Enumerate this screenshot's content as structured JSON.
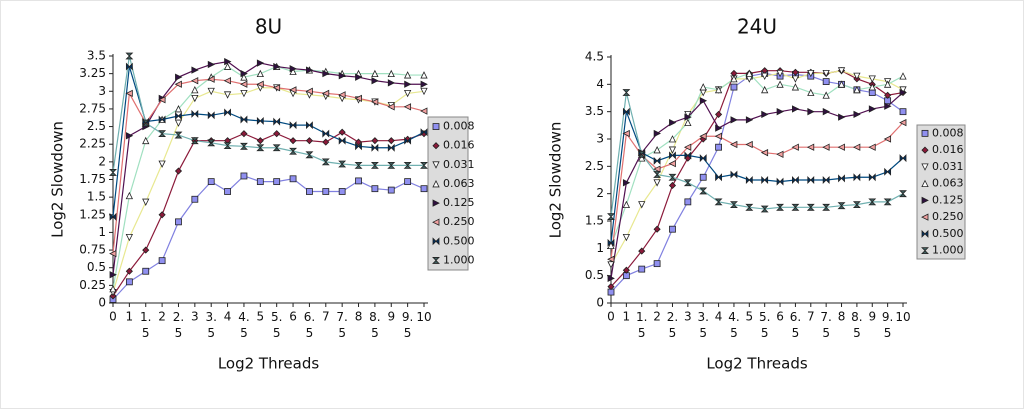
{
  "chart_data": [
    {
      "type": "line",
      "title": "8U",
      "xlabel": "Log2 Threads",
      "ylabel": "Log2 Slowdown",
      "categories": [
        "0",
        "1",
        "1.5",
        "2",
        "2.5",
        "3",
        "3.5",
        "4",
        "4.5",
        "5",
        "5.5",
        "6",
        "6.5",
        "7",
        "7.5",
        "8",
        "8.5",
        "9",
        "9.5",
        "10"
      ],
      "ylim": [
        0,
        3.5
      ],
      "yticks": [
        0,
        0.25,
        0.5,
        0.75,
        1,
        1.25,
        1.5,
        1.75,
        2,
        2.25,
        2.5,
        2.75,
        3,
        3.25,
        3.5
      ],
      "legend": "right",
      "series": [
        {
          "name": "0.008",
          "color": "#8080e0",
          "marker": "square",
          "marker_fill": "#9090f0",
          "values": [
            0.05,
            0.3,
            0.45,
            0.6,
            1.15,
            1.47,
            1.72,
            1.58,
            1.8,
            1.72,
            1.72,
            1.76,
            1.58,
            1.58,
            1.58,
            1.73,
            1.62,
            1.6,
            1.72,
            1.62
          ]
        },
        {
          "name": "0.016",
          "color": "#8b1a3a",
          "marker": "diamond",
          "marker_fill": "#8b1a3a",
          "values": [
            0.1,
            0.45,
            0.75,
            1.25,
            1.87,
            2.3,
            2.3,
            2.3,
            2.4,
            2.3,
            2.4,
            2.3,
            2.3,
            2.28,
            2.42,
            2.28,
            2.3,
            2.3,
            2.32,
            2.4
          ]
        },
        {
          "name": "0.031",
          "color": "#e8e890",
          "marker": "tri-down",
          "marker_fill": "#ffffff",
          "values": [
            0.15,
            0.93,
            1.43,
            1.97,
            2.55,
            2.9,
            3.0,
            2.95,
            2.97,
            3.05,
            3.05,
            2.97,
            2.95,
            2.93,
            2.9,
            2.88,
            2.85,
            2.8,
            2.97,
            3.0
          ]
        },
        {
          "name": "0.063",
          "color": "#a0e0c0",
          "marker": "tri-up",
          "marker_fill": "#ffffff",
          "values": [
            0.2,
            1.52,
            2.3,
            2.6,
            2.75,
            3.02,
            3.2,
            3.35,
            3.2,
            3.25,
            3.35,
            3.28,
            3.3,
            3.28,
            3.25,
            3.25,
            3.25,
            3.25,
            3.23,
            3.23
          ]
        },
        {
          "name": "0.125",
          "color": "#501050",
          "marker": "tri-right",
          "marker_fill": "#301040",
          "values": [
            0.4,
            2.37,
            2.5,
            2.9,
            3.2,
            3.3,
            3.38,
            3.42,
            3.25,
            3.4,
            3.35,
            3.32,
            3.3,
            3.25,
            3.22,
            3.2,
            3.15,
            3.12,
            3.1,
            3.1
          ]
        },
        {
          "name": "0.250",
          "color": "#e07070",
          "marker": "tri-left",
          "marker_fill": "#f0a0a0",
          "values": [
            0.7,
            2.97,
            2.55,
            2.88,
            3.1,
            3.15,
            3.17,
            3.15,
            3.1,
            3.1,
            3.05,
            3.02,
            3.0,
            2.97,
            2.95,
            2.9,
            2.85,
            2.78,
            2.78,
            2.72
          ]
        },
        {
          "name": "0.500",
          "color": "#004a80",
          "marker": "bowtie",
          "marker_fill": "#003060",
          "values": [
            1.22,
            3.35,
            2.57,
            2.6,
            2.65,
            2.68,
            2.66,
            2.7,
            2.6,
            2.58,
            2.57,
            2.52,
            2.52,
            2.4,
            2.3,
            2.22,
            2.2,
            2.2,
            2.3,
            2.42
          ]
        },
        {
          "name": "1.000",
          "color": "#70b0b0",
          "marker": "hourglass",
          "marker_fill": "#406060",
          "values": [
            1.85,
            3.5,
            2.55,
            2.4,
            2.38,
            2.3,
            2.27,
            2.23,
            2.22,
            2.2,
            2.2,
            2.15,
            2.1,
            2.0,
            1.97,
            1.95,
            1.95,
            1.95,
            1.95,
            1.95
          ]
        }
      ]
    },
    {
      "type": "line",
      "title": "24U",
      "xlabel": "Log2 Threads",
      "ylabel": "Log2 Slowdown",
      "categories": [
        "0",
        "1",
        "1.5",
        "2",
        "2.5",
        "3",
        "3.5",
        "4",
        "4.5",
        "5",
        "5.5",
        "6",
        "6.5",
        "7",
        "7.5",
        "8",
        "8.5",
        "9",
        "9.5",
        "10"
      ],
      "ylim": [
        0,
        4.5
      ],
      "yticks": [
        0,
        0.5,
        1,
        1.5,
        2,
        2.5,
        3,
        3.5,
        4,
        4.5
      ],
      "legend": "right",
      "series": [
        {
          "name": "0.008",
          "color": "#8080e0",
          "marker": "square",
          "marker_fill": "#9090f0",
          "values": [
            0.2,
            0.5,
            0.62,
            0.72,
            1.35,
            1.85,
            2.3,
            2.85,
            3.95,
            4.15,
            4.2,
            4.15,
            4.18,
            4.15,
            4.05,
            4.0,
            3.9,
            3.85,
            3.7,
            3.5
          ]
        },
        {
          "name": "0.016",
          "color": "#8b1a3a",
          "marker": "diamond",
          "marker_fill": "#8b1a3a",
          "values": [
            0.3,
            0.6,
            0.95,
            1.35,
            2.15,
            2.65,
            3.0,
            3.45,
            4.2,
            4.2,
            4.25,
            4.25,
            4.22,
            4.22,
            4.2,
            4.25,
            4.1,
            4.0,
            3.8,
            3.85
          ]
        },
        {
          "name": "0.031",
          "color": "#e8e890",
          "marker": "tri-down",
          "marker_fill": "#ffffff",
          "values": [
            0.7,
            1.2,
            1.8,
            2.2,
            2.8,
            3.45,
            3.85,
            3.9,
            4.1,
            4.1,
            4.15,
            4.2,
            4.1,
            4.2,
            4.2,
            4.25,
            4.15,
            4.1,
            4.05,
            3.9
          ]
        },
        {
          "name": "0.063",
          "color": "#a0e0c0",
          "marker": "tri-up",
          "marker_fill": "#ffffff",
          "values": [
            1.05,
            1.8,
            2.65,
            2.8,
            3.0,
            3.3,
            3.95,
            3.9,
            4.1,
            4.2,
            3.9,
            4.0,
            3.95,
            3.85,
            3.8,
            4.0,
            3.9,
            3.95,
            4.0,
            4.15
          ]
        },
        {
          "name": "0.125",
          "color": "#501050",
          "marker": "tri-right",
          "marker_fill": "#301040",
          "values": [
            0.45,
            2.2,
            2.75,
            3.1,
            3.3,
            3.4,
            3.7,
            3.2,
            3.35,
            3.35,
            3.45,
            3.5,
            3.55,
            3.5,
            3.5,
            3.4,
            3.45,
            3.55,
            3.6,
            3.85
          ]
        },
        {
          "name": "0.250",
          "color": "#e07070",
          "marker": "tri-left",
          "marker_fill": "#f0a0a0",
          "values": [
            0.8,
            3.1,
            2.7,
            2.45,
            2.55,
            2.85,
            3.05,
            3.05,
            2.9,
            2.9,
            2.75,
            2.72,
            2.85,
            2.85,
            2.85,
            2.85,
            2.85,
            2.85,
            3.0,
            3.3
          ]
        },
        {
          "name": "0.500",
          "color": "#004a80",
          "marker": "bowtie",
          "marker_fill": "#003060",
          "values": [
            1.1,
            3.5,
            2.75,
            2.6,
            2.7,
            2.7,
            2.65,
            2.3,
            2.35,
            2.25,
            2.25,
            2.22,
            2.25,
            2.25,
            2.25,
            2.28,
            2.3,
            2.3,
            2.4,
            2.65
          ]
        },
        {
          "name": "1.000",
          "color": "#70b0b0",
          "marker": "hourglass",
          "marker_fill": "#406060",
          "values": [
            1.58,
            3.85,
            2.72,
            2.35,
            2.3,
            2.2,
            2.05,
            1.85,
            1.8,
            1.75,
            1.72,
            1.75,
            1.75,
            1.75,
            1.75,
            1.78,
            1.8,
            1.85,
            1.85,
            2.0
          ]
        }
      ]
    }
  ]
}
